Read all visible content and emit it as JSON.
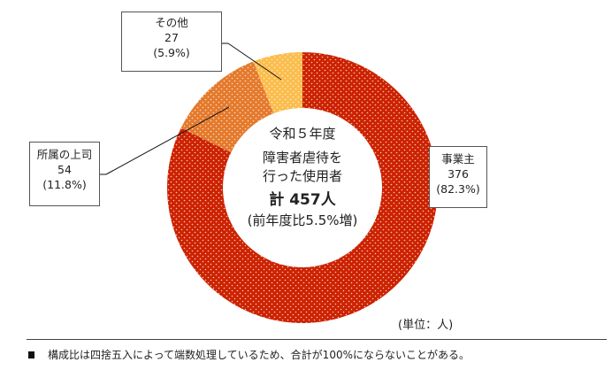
{
  "chart_data": {
    "type": "pie",
    "variant": "donut",
    "center_text": [
      "令和５年度",
      "障害者虐待を",
      "行った使用者",
      "計 457人",
      "(前年度比5.5%増)"
    ],
    "slices": [
      {
        "label": "事業主",
        "value": 376,
        "percent_text": "(82.3%)",
        "color": "#CC2200"
      },
      {
        "label": "所属の上司",
        "value": 54,
        "percent_text": "(11.8%)",
        "color": "#E47A2C"
      },
      {
        "label": "その他",
        "value": 27,
        "percent_text": "(5.9%)",
        "color": "#FBBD4C"
      }
    ],
    "unit": "(単位：人)",
    "legend": "none"
  },
  "footnote": "構成比は四捨五入によって端数処理しているため、合計が100%にならないことがある。"
}
